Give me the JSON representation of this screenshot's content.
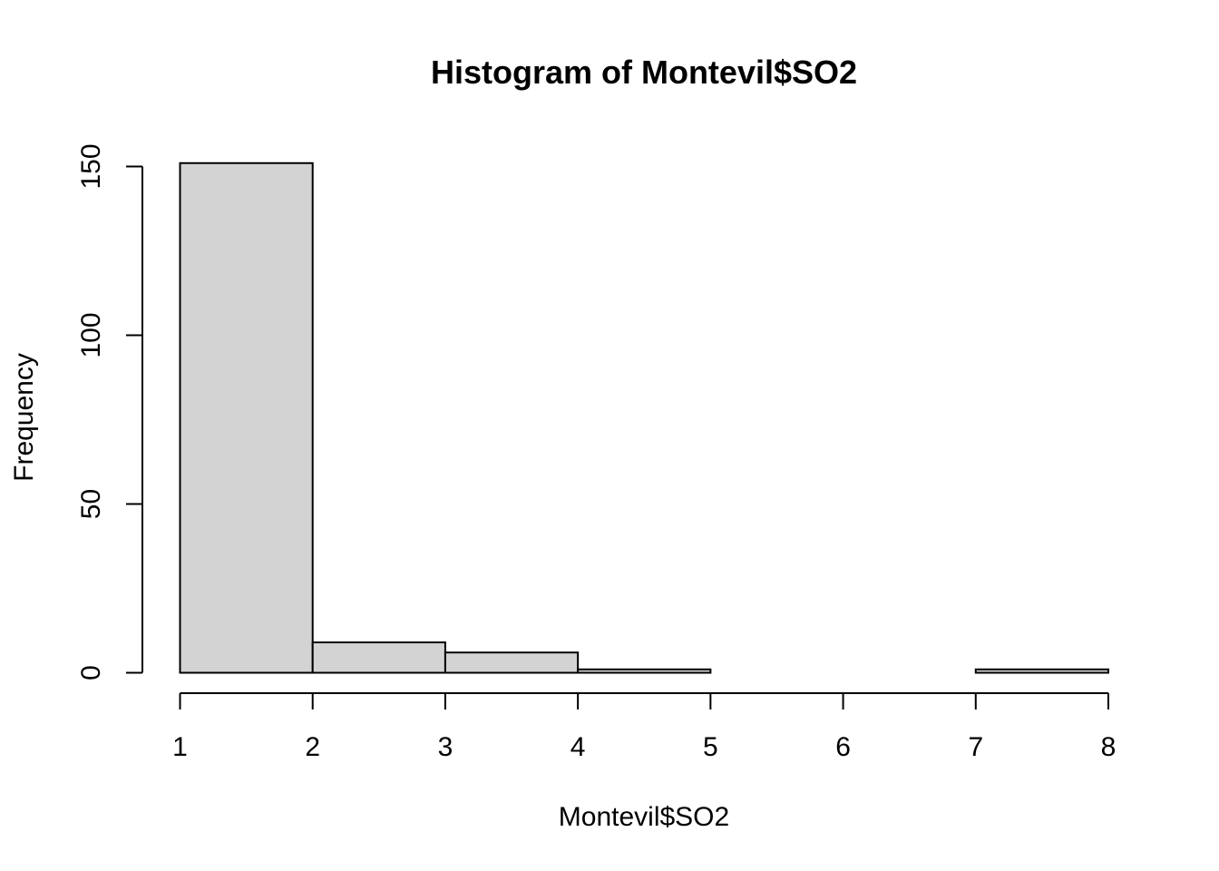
{
  "chart_data": {
    "type": "bar",
    "title": "Histogram of Montevil$SO2",
    "xlabel": "Montevil$SO2",
    "ylabel": "Frequency",
    "bins": [
      {
        "from": 1,
        "to": 2,
        "count": 151
      },
      {
        "from": 2,
        "to": 3,
        "count": 9
      },
      {
        "from": 3,
        "to": 4,
        "count": 6
      },
      {
        "from": 4,
        "to": 5,
        "count": 1
      },
      {
        "from": 5,
        "to": 6,
        "count": 0
      },
      {
        "from": 6,
        "to": 7,
        "count": 0
      },
      {
        "from": 7,
        "to": 8,
        "count": 1
      }
    ],
    "xticks": [
      "1",
      "2",
      "3",
      "4",
      "5",
      "6",
      "7",
      "8"
    ],
    "yticks": [
      "0",
      "50",
      "100",
      "150"
    ],
    "xlim": [
      1,
      8
    ],
    "ylim": [
      0,
      150
    ],
    "grid": false,
    "bar_color": "#d3d3d3"
  }
}
